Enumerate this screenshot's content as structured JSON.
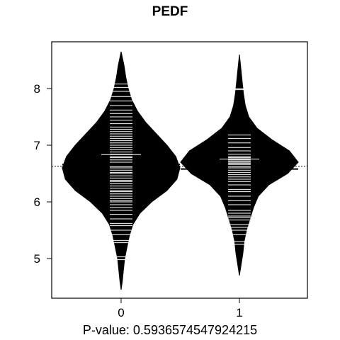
{
  "chart_data": {
    "type": "beanplot",
    "title": "PEDF",
    "xlabel": "P-value: 0.5936574547924215",
    "categories": [
      "0",
      "1"
    ],
    "ylim": [
      4.3,
      8.85
    ],
    "yticks": [
      5,
      6,
      7,
      8
    ],
    "overall_mean": 6.63,
    "groups": [
      {
        "name": "0",
        "mean": 6.66,
        "min": 4.45,
        "max": 8.65,
        "density": [
          [
            4.45,
            0.0
          ],
          [
            4.6,
            0.02
          ],
          [
            4.8,
            0.04
          ],
          [
            5.0,
            0.06
          ],
          [
            5.2,
            0.1
          ],
          [
            5.4,
            0.14
          ],
          [
            5.6,
            0.2
          ],
          [
            5.8,
            0.32
          ],
          [
            6.0,
            0.52
          ],
          [
            6.2,
            0.78
          ],
          [
            6.4,
            0.95
          ],
          [
            6.6,
            1.0
          ],
          [
            6.8,
            0.93
          ],
          [
            7.0,
            0.78
          ],
          [
            7.2,
            0.6
          ],
          [
            7.4,
            0.42
          ],
          [
            7.6,
            0.28
          ],
          [
            7.8,
            0.18
          ],
          [
            8.0,
            0.12
          ],
          [
            8.2,
            0.08
          ],
          [
            8.4,
            0.05
          ],
          [
            8.65,
            0.0
          ]
        ],
        "observations": [
          4.98,
          5.03,
          5.28,
          5.32,
          5.42,
          5.5,
          5.58,
          5.62,
          5.7,
          5.78,
          5.85,
          5.9,
          5.95,
          6.0,
          6.02,
          6.06,
          6.1,
          6.14,
          6.18,
          6.2,
          6.24,
          6.28,
          6.32,
          6.36,
          6.38,
          6.42,
          6.46,
          6.5,
          6.52,
          6.56,
          6.6,
          6.62,
          6.66,
          6.7,
          6.74,
          6.78,
          6.8,
          6.84,
          6.88,
          6.92,
          6.96,
          7.0,
          7.04,
          7.08,
          7.12,
          7.16,
          7.2,
          7.24,
          7.28,
          7.32,
          7.38,
          7.44,
          7.5,
          7.56,
          7.62,
          7.7,
          7.78,
          7.86,
          7.95,
          8.02,
          8.08
        ]
      },
      {
        "name": "1",
        "mean": 6.58,
        "min": 4.7,
        "max": 8.6,
        "density": [
          [
            4.7,
            0.0
          ],
          [
            4.9,
            0.03
          ],
          [
            5.1,
            0.06
          ],
          [
            5.3,
            0.08
          ],
          [
            5.5,
            0.12
          ],
          [
            5.7,
            0.18
          ],
          [
            5.9,
            0.24
          ],
          [
            6.1,
            0.32
          ],
          [
            6.3,
            0.5
          ],
          [
            6.5,
            0.82
          ],
          [
            6.7,
            1.0
          ],
          [
            6.9,
            0.85
          ],
          [
            7.1,
            0.55
          ],
          [
            7.3,
            0.3
          ],
          [
            7.5,
            0.16
          ],
          [
            7.7,
            0.1
          ],
          [
            7.9,
            0.07
          ],
          [
            8.1,
            0.05
          ],
          [
            8.3,
            0.03
          ],
          [
            8.6,
            0.0
          ]
        ],
        "observations": [
          5.25,
          5.3,
          5.42,
          5.5,
          5.55,
          5.6,
          5.68,
          5.72,
          5.75,
          5.8,
          5.85,
          5.95,
          6.02,
          6.1,
          6.18,
          6.22,
          6.3,
          6.36,
          6.4,
          6.44,
          6.48,
          6.52,
          6.56,
          6.6,
          6.62,
          6.66,
          6.68,
          6.7,
          6.72,
          6.74,
          6.76,
          6.78,
          6.8,
          6.84,
          6.9,
          6.96,
          7.04,
          7.12,
          7.18,
          7.98,
          8.0
        ]
      }
    ]
  }
}
